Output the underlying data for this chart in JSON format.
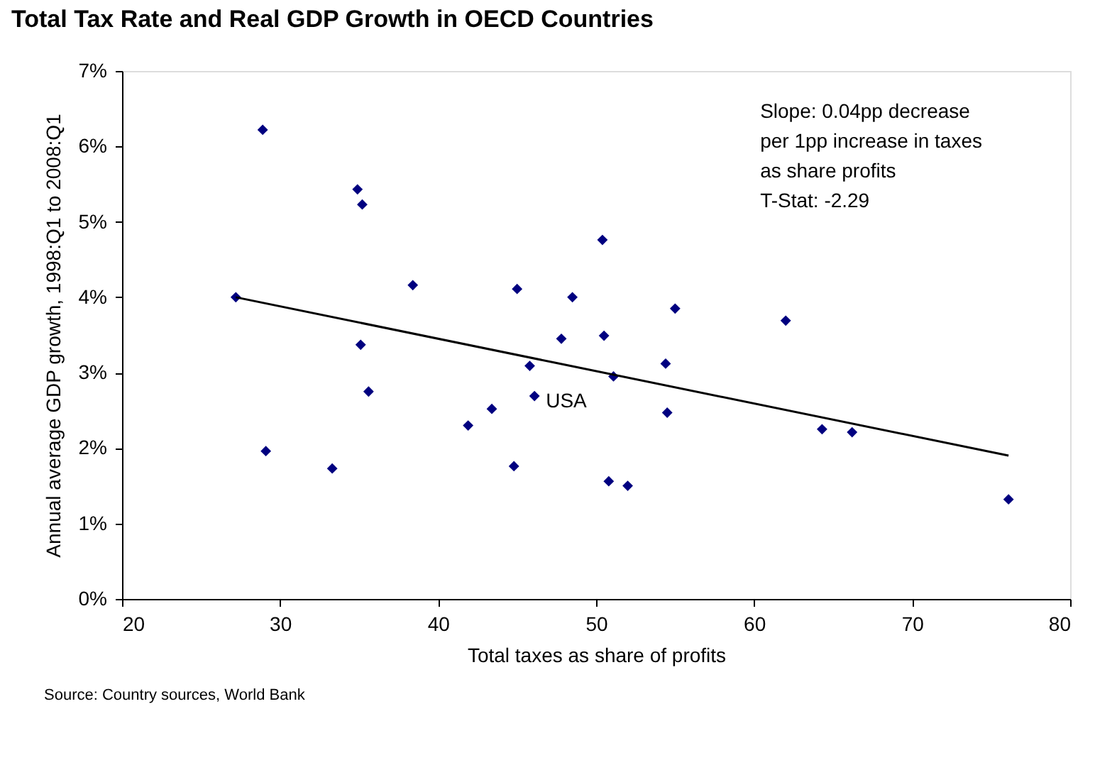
{
  "chart_data": {
    "type": "scatter",
    "title": "Total Tax Rate and Real GDP Growth in OECD Countries",
    "xlabel": "Total taxes as share of profits",
    "ylabel": "Annual average GDP growth, 1998:Q1 to 2008:Q1",
    "xlim": [
      20,
      80
    ],
    "xticks": [
      20,
      30,
      40,
      50,
      60,
      70,
      80
    ],
    "ylim": [
      0,
      7
    ],
    "yticks": [
      {
        "value": 0,
        "label": "0%"
      },
      {
        "value": 1,
        "label": "1%"
      },
      {
        "value": 2,
        "label": "2%"
      },
      {
        "value": 3,
        "label": "3%"
      },
      {
        "value": 4,
        "label": "4%"
      },
      {
        "value": 5,
        "label": "5%"
      },
      {
        "value": 6,
        "label": "6%"
      },
      {
        "value": 7,
        "label": "7%"
      }
    ],
    "grid": false,
    "marker": "diamond",
    "series": [
      {
        "color": "#000080",
        "x": [
          28.9,
          34.9,
          35.2,
          27.2,
          38.4,
          45.0,
          48.5,
          35.1,
          47.8,
          50.5,
          50.4,
          45.8,
          35.6,
          46.1,
          43.4,
          41.9,
          29.1,
          33.3,
          44.8,
          50.8,
          52.0,
          51.1,
          55.0,
          54.4,
          54.5,
          62.0,
          64.3,
          66.2,
          76.1
        ],
        "values": [
          6.22,
          5.43,
          5.23,
          4.0,
          4.16,
          4.11,
          4.0,
          3.37,
          3.45,
          3.49,
          4.76,
          3.09,
          2.75,
          2.69,
          2.52,
          2.3,
          1.96,
          1.73,
          1.76,
          1.56,
          1.5,
          2.95,
          3.85,
          3.12,
          2.47,
          3.69,
          2.25,
          2.21,
          1.32
        ]
      },
      {
        "type": "line",
        "color": "#000000",
        "line_style": "solid",
        "marker": "none",
        "x": [
          27.2,
          76.1
        ],
        "values": [
          4.0,
          1.9
        ]
      }
    ],
    "annotations": [
      "Slope: 0.04pp decrease\nper 1pp increase in taxes\nas share profits\nT-Stat: -2.29",
      {
        "text": "USA",
        "x": 46.1,
        "y": 2.69
      },
      "Source: Country sources, World Bank"
    ]
  }
}
